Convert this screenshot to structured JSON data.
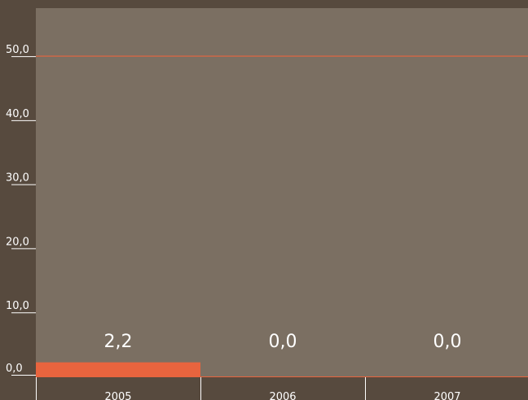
{
  "chart_data": {
    "type": "bar",
    "categories": [
      "2005",
      "2006",
      "2007"
    ],
    "values": [
      2.2,
      0.0,
      0.0
    ],
    "data_labels": [
      "2,2",
      "0,0",
      "0,0"
    ],
    "ylim": [
      0,
      57.5
    ],
    "yticks": [
      0,
      10,
      20,
      30,
      40,
      50
    ],
    "ytick_labels": [
      "0,0",
      "10,0",
      "20,0",
      "30,0",
      "40,0",
      "50,0"
    ],
    "reference_line": {
      "value": 50,
      "color": "#e8643e"
    },
    "grid": false,
    "colors": {
      "background": "#574a3e",
      "plot_area": "#7b6f62",
      "bar": "#e8643e",
      "text": "#ffffff",
      "axis": "#ffffff"
    }
  }
}
